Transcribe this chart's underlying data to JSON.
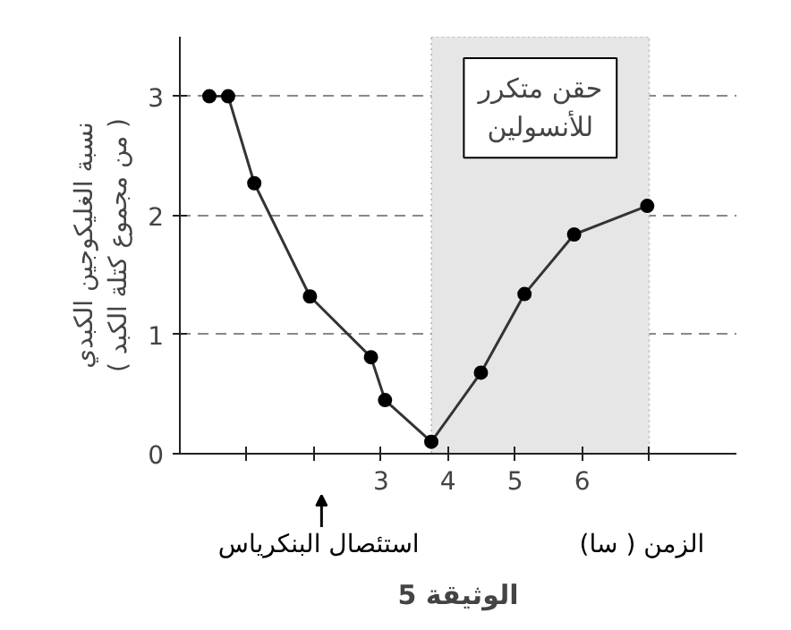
{
  "chart_data": {
    "type": "line",
    "xlabel": "الزمن ( سا)",
    "ylabel": "نسبة الغليكوجين الكبدي\n( من مجموع كتلة الكبد )",
    "series": [
      {
        "color": "#333333",
        "x": [
          0.44,
          0.72,
          1.11,
          1.94,
          2.85,
          3.06,
          3.75,
          4.49,
          5.14,
          5.88,
          6.97
        ],
        "values": [
          3.0,
          3.0,
          2.27,
          1.32,
          0.81,
          0.45,
          0.1,
          0.68,
          1.34,
          1.84,
          2.08
        ]
      }
    ],
    "xlim": [
      0,
      8.3
    ],
    "ylim": [
      0,
      3.5
    ],
    "xticks": [
      {
        "value": 1,
        "label": null
      },
      {
        "value": 2,
        "label": null
      },
      3,
      4,
      5,
      6,
      {
        "value": 7,
        "label": null
      }
    ],
    "yticks": [
      0,
      1,
      2,
      3
    ],
    "grid": "y",
    "marker": "circle",
    "line_style": "solid",
    "bands": [
      {
        "axis": "x",
        "from": 3.75,
        "to": 7,
        "label": "حقن متكرر\nللأنسولين",
        "color": "#e6e6e6"
      }
    ],
    "annotations": [
      "استئصال البنكرياس",
      "الوثيقة 5"
    ]
  }
}
